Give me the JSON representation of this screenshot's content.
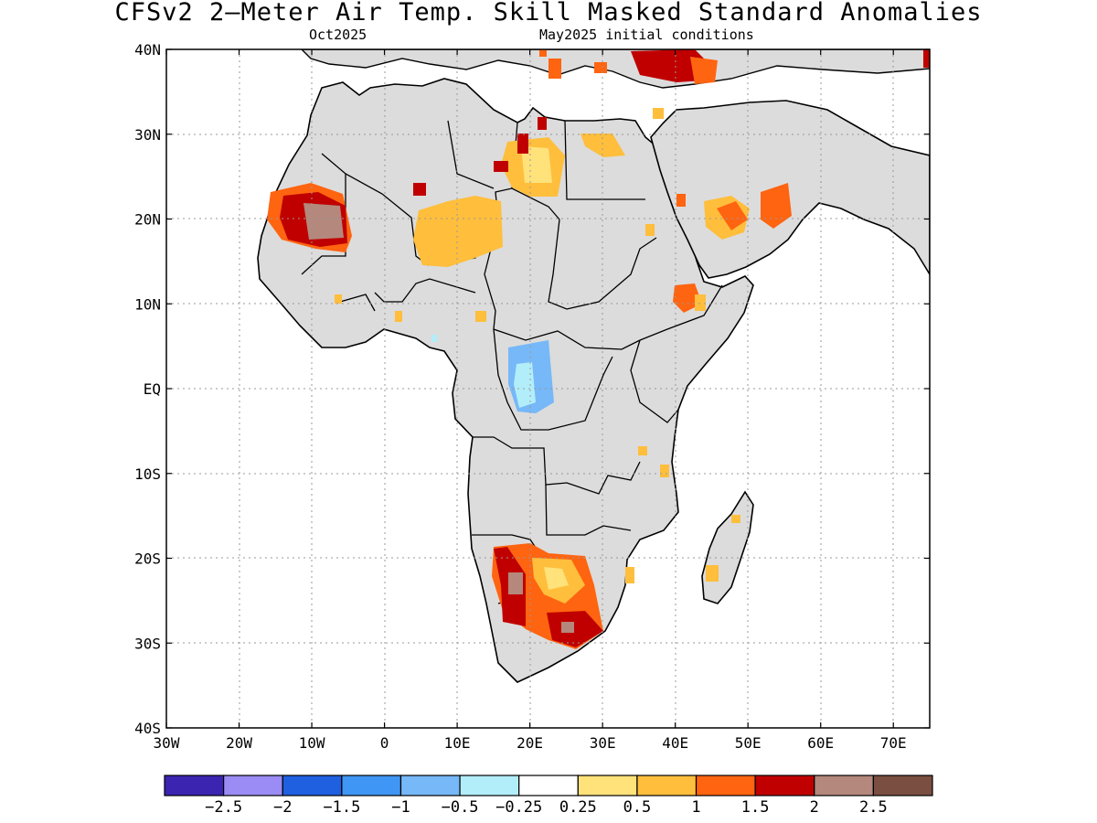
{
  "title": "CFSv2 2—Meter Air Temp. Skill Masked Standard Anomalies",
  "subtitle_left": "Oct2025",
  "subtitle_right": "May2025 initial conditions",
  "axes": {
    "lon_ticks": [
      "30W",
      "20W",
      "10W",
      "0",
      "10E",
      "20E",
      "30E",
      "40E",
      "50E",
      "60E",
      "70E"
    ],
    "lat_ticks": [
      "40N",
      "30N",
      "20N",
      "10N",
      "EQ",
      "10S",
      "20S",
      "30S",
      "40S"
    ],
    "lon_range": [
      -30,
      75
    ],
    "lat_range": [
      -40,
      40
    ],
    "grid": "dotted"
  },
  "colorbar": {
    "colors": [
      "#3b24b0",
      "#9a8cf4",
      "#1f60e0",
      "#3f96f4",
      "#76b8f8",
      "#b2eefa",
      "#ffffff",
      "#ffe27a",
      "#ffbe3c",
      "#ff6410",
      "#c00000",
      "#b4887c",
      "#7a4e40"
    ],
    "labels": [
      "−2.5",
      "−2",
      "−1.5",
      "−1",
      "−0.5",
      "−0.25",
      "0.25",
      "0.5",
      "1",
      "1.5",
      "2",
      "2.5"
    ]
  },
  "map_colors": {
    "land_masked": "#dcdcdc",
    "ocean": "#ffffff",
    "outline": "#000000"
  },
  "anomaly_regions": [
    {
      "name": "mauritania-west-sahara",
      "category": "1.5-2"
    },
    {
      "name": "niger-chad",
      "category": "0.5-1"
    },
    {
      "name": "libya",
      "category": "0.5-1"
    },
    {
      "name": "egypt",
      "category": "0.5-1"
    },
    {
      "name": "eastern-mediterranean-turkey",
      "category": "1.5-2"
    },
    {
      "name": "arabia-oman",
      "category": "1-1.5"
    },
    {
      "name": "ethiopia",
      "category": "1-1.5"
    },
    {
      "name": "central-africa-congo",
      "category": "-1 to -0.5"
    },
    {
      "name": "southern-africa",
      "category": "1.5-2"
    }
  ]
}
